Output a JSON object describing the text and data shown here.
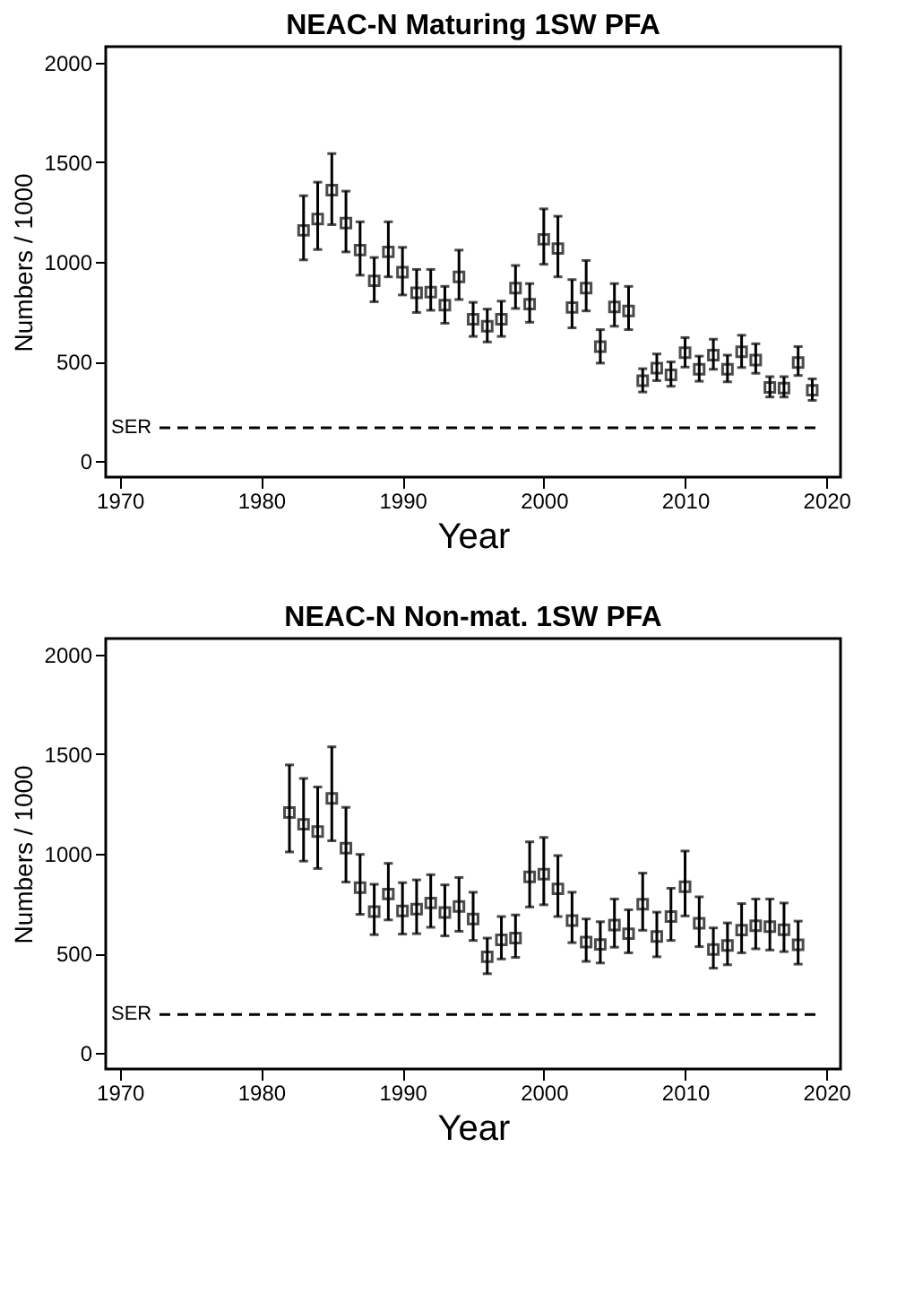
{
  "chart_data": [
    {
      "type": "scatter",
      "title": "NEAC-N Maturing 1SW  PFA",
      "xlabel": "Year",
      "ylabel": "Numbers / 1000",
      "marker": "square",
      "grid": false,
      "legend": false,
      "x": [
        1983,
        1984,
        1985,
        1986,
        1987,
        1988,
        1989,
        1990,
        1991,
        1992,
        1993,
        1994,
        1995,
        1996,
        1997,
        1998,
        1999,
        2000,
        2001,
        2002,
        2003,
        2004,
        2005,
        2006,
        2007,
        2008,
        2009,
        2010,
        2011,
        2012,
        2013,
        2014,
        2015,
        2016,
        2017,
        2018,
        2019
      ],
      "series": [
        {
          "color": "#000000",
          "values": [
            1158,
            1215,
            1360,
            1195,
            1059,
            905,
            1050,
            948,
            845,
            848,
            783,
            925,
            712,
            677,
            712,
            868,
            788,
            1113,
            1067,
            771,
            868,
            575,
            774,
            754,
            404,
            467,
            433,
            544,
            461,
            532,
            461,
            549,
            507,
            370,
            367,
            495,
            356
          ],
          "errors": [
            [
              1010,
              1332
            ],
            [
              1062,
              1400
            ],
            [
              1187,
              1543
            ],
            [
              1050,
              1355
            ],
            [
              933,
              1201
            ],
            [
              800,
              1022
            ],
            [
              925,
              1201
            ],
            [
              834,
              1073
            ],
            [
              746,
              962
            ],
            [
              757,
              962
            ],
            [
              692,
              877
            ],
            [
              811,
              1059
            ],
            [
              626,
              797
            ],
            [
              598,
              763
            ],
            [
              626,
              803
            ],
            [
              766,
              982
            ],
            [
              697,
              891
            ],
            [
              988,
              1266
            ],
            [
              925,
              1229
            ],
            [
              669,
              911
            ],
            [
              754,
              1007
            ],
            [
              492,
              660
            ],
            [
              677,
              891
            ],
            [
              660,
              877
            ],
            [
              347,
              464
            ],
            [
              404,
              538
            ],
            [
              376,
              498
            ],
            [
              472,
              620
            ],
            [
              401,
              527
            ],
            [
              461,
              612
            ],
            [
              398,
              532
            ],
            [
              470,
              632
            ],
            [
              441,
              589
            ],
            [
              322,
              424
            ],
            [
              322,
              424
            ],
            [
              430,
              575
            ],
            [
              305,
              413
            ]
          ]
        }
      ],
      "xlim": [
        1969,
        2021
      ],
      "xticks": [
        1970,
        1980,
        1990,
        2000,
        2010,
        2020
      ],
      "ylim": [
        -80,
        2080
      ],
      "yticks": [
        0,
        500,
        1000,
        1500,
        2000
      ],
      "ref_lines": [
        {
          "axis": "y",
          "value": 168,
          "label": "SER",
          "line_style": "dashed",
          "color": "#000000"
        }
      ]
    },
    {
      "type": "scatter",
      "title": "NEAC-N Non-mat. 1SW  PFA",
      "xlabel": "Year",
      "ylabel": "Numbers / 1000",
      "marker": "square",
      "grid": false,
      "legend": false,
      "x": [
        1982,
        1983,
        1984,
        1985,
        1986,
        1987,
        1988,
        1989,
        1990,
        1991,
        1992,
        1993,
        1994,
        1995,
        1996,
        1997,
        1998,
        1999,
        2000,
        2001,
        2002,
        2003,
        2004,
        2005,
        2006,
        2007,
        2008,
        2009,
        2010,
        2011,
        2012,
        2013,
        2014,
        2015,
        2016,
        2017,
        2018
      ],
      "series": [
        {
          "color": "#000000",
          "values": [
            1207,
            1148,
            1111,
            1278,
            1028,
            830,
            710,
            798,
            713,
            722,
            753,
            705,
            736,
            673,
            483,
            568,
            577,
            884,
            898,
            824,
            665,
            557,
            545,
            642,
            599,
            747,
            585,
            685,
            835,
            651,
            520,
            540,
            617,
            639,
            634,
            619,
            543
          ],
          "errors": [
            [
              1009,
              1446
            ],
            [
              963,
              1378
            ],
            [
              926,
              1335
            ],
            [
              1065,
              1537
            ],
            [
              858,
              1233
            ],
            [
              696,
              997
            ],
            [
              594,
              847
            ],
            [
              668,
              952
            ],
            [
              597,
              855
            ],
            [
              599,
              869
            ],
            [
              631,
              895
            ],
            [
              588,
              844
            ],
            [
              611,
              881
            ],
            [
              565,
              807
            ],
            [
              398,
              577
            ],
            [
              472,
              685
            ],
            [
              480,
              693
            ],
            [
              733,
              1060
            ],
            [
              744,
              1082
            ],
            [
              685,
              991
            ],
            [
              554,
              807
            ],
            [
              460,
              673
            ],
            [
              452,
              659
            ],
            [
              531,
              773
            ],
            [
              503,
              719
            ],
            [
              616,
              903
            ],
            [
              483,
              707
            ],
            [
              565,
              827
            ],
            [
              688,
              1014
            ],
            [
              534,
              784
            ],
            [
              426,
              628
            ],
            [
              443,
              653
            ],
            [
              503,
              750
            ],
            [
              523,
              773
            ],
            [
              517,
              773
            ],
            [
              509,
              753
            ],
            [
              446,
              662
            ]
          ]
        }
      ],
      "xlim": [
        1969,
        2021
      ],
      "xticks": [
        1970,
        1980,
        1990,
        2000,
        2010,
        2020
      ],
      "ylim": [
        -80,
        2080
      ],
      "yticks": [
        0,
        500,
        1000,
        1500,
        2000
      ],
      "ref_lines": [
        {
          "axis": "y",
          "value": 193,
          "label": "SER",
          "line_style": "dashed",
          "color": "#000000"
        }
      ]
    }
  ]
}
